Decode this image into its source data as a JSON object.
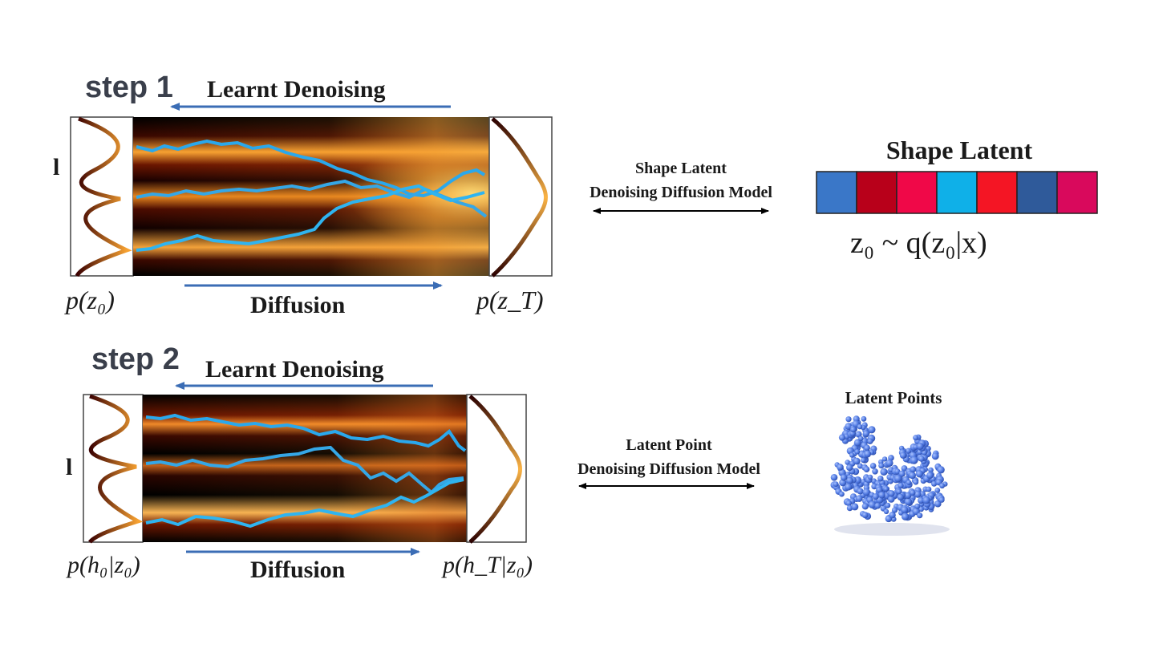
{
  "step1": {
    "label": "step 1",
    "denoise_label": "Learnt Denoising",
    "diffusion_label": "Diffusion",
    "left_dist": "p(z₀)",
    "right_dist": "p(z_T)",
    "left_edge_glyph": "l"
  },
  "step2": {
    "label": "step 2",
    "denoise_label": "Learnt Denoising",
    "diffusion_label": "Diffusion",
    "left_dist": "p(h₀|z₀)",
    "right_dist": "p(h_T|z₀)",
    "left_edge_glyph": "l"
  },
  "shape_model": {
    "line1": "Shape Latent",
    "line2": "Denoising Diffusion Model"
  },
  "point_model": {
    "line1": "Latent Point",
    "line2": "Denoising Diffusion Model"
  },
  "shape_latent": {
    "title": "Shape Latent",
    "formula": "z₀ ~ q(z₀|x)",
    "cells": [
      "#3a77c8",
      "#b8001a",
      "#f00848",
      "#0fb0e8",
      "#f41524",
      "#2f5a9a",
      "#d9095c"
    ]
  },
  "latent_points": {
    "title": "Latent Points",
    "point_color": "#4f78e0"
  },
  "colors": {
    "arrow_blue": "#3b6db5",
    "trajectory": "#2aa8ec",
    "text_dark": "#1a1a1a"
  }
}
